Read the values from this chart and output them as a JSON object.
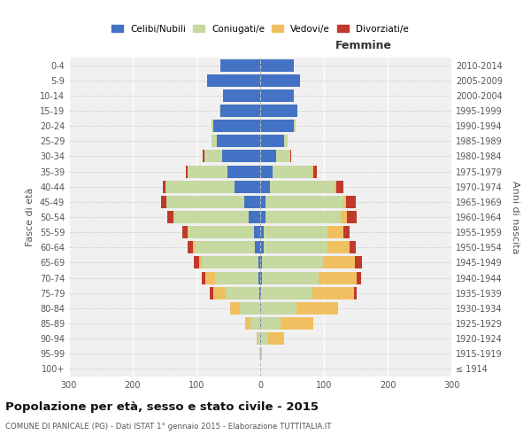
{
  "age_groups": [
    "100+",
    "95-99",
    "90-94",
    "85-89",
    "80-84",
    "75-79",
    "70-74",
    "65-69",
    "60-64",
    "55-59",
    "50-54",
    "45-49",
    "40-44",
    "35-39",
    "30-34",
    "25-29",
    "20-24",
    "15-19",
    "10-14",
    "5-9",
    "0-4"
  ],
  "birth_years": [
    "≤ 1914",
    "1915-1919",
    "1920-1924",
    "1925-1929",
    "1930-1934",
    "1935-1939",
    "1940-1944",
    "1945-1949",
    "1950-1954",
    "1955-1959",
    "1960-1964",
    "1965-1969",
    "1970-1974",
    "1975-1979",
    "1980-1984",
    "1985-1989",
    "1990-1994",
    "1995-1999",
    "2000-2004",
    "2005-2009",
    "2010-2014"
  ],
  "male_celibe": [
    0,
    0,
    0,
    0,
    0,
    2,
    3,
    3,
    8,
    10,
    18,
    25,
    40,
    52,
    60,
    68,
    73,
    63,
    58,
    83,
    63
  ],
  "male_coniugato": [
    0,
    1,
    4,
    15,
    32,
    52,
    68,
    88,
    95,
    102,
    118,
    122,
    108,
    62,
    28,
    8,
    3,
    1,
    0,
    0,
    0
  ],
  "male_vedovo": [
    0,
    0,
    2,
    8,
    15,
    20,
    15,
    5,
    3,
    2,
    0,
    0,
    0,
    0,
    0,
    0,
    0,
    0,
    0,
    0,
    0
  ],
  "male_divorziato": [
    0,
    0,
    0,
    0,
    0,
    5,
    5,
    8,
    8,
    8,
    10,
    8,
    5,
    3,
    2,
    1,
    0,
    0,
    0,
    0,
    0
  ],
  "fem_nubile": [
    0,
    0,
    2,
    2,
    2,
    2,
    3,
    3,
    5,
    5,
    8,
    8,
    15,
    20,
    25,
    38,
    53,
    58,
    53,
    63,
    53
  ],
  "fem_coniugata": [
    0,
    1,
    10,
    30,
    55,
    80,
    88,
    95,
    100,
    100,
    118,
    122,
    102,
    62,
    22,
    5,
    3,
    0,
    0,
    0,
    0
  ],
  "fem_vedova": [
    0,
    2,
    25,
    52,
    65,
    65,
    60,
    50,
    35,
    25,
    10,
    5,
    3,
    2,
    0,
    0,
    0,
    0,
    0,
    0,
    0
  ],
  "fem_divorziata": [
    0,
    0,
    0,
    0,
    0,
    5,
    8,
    12,
    10,
    10,
    15,
    15,
    10,
    5,
    2,
    0,
    0,
    0,
    0,
    0,
    0
  ],
  "colors": {
    "celibe": "#4472C4",
    "coniugato": "#c5d9a0",
    "vedovo": "#f0c060",
    "divorziato": "#c0392b"
  },
  "xlim": 300,
  "title": "Popolazione per età, sesso e stato civile - 2015",
  "subtitle": "COMUNE DI PANICALE (PG) - Dati ISTAT 1° gennaio 2015 - Elaborazione TUTTITALIA.IT",
  "ylabel_left": "Fasce di età",
  "ylabel_right": "Anni di nascita",
  "xlabel_right": "Femmine",
  "legend_labels": [
    "Celibi/Nubili",
    "Coniugati/e",
    "Vedovi/e",
    "Divorziati/e"
  ],
  "bg_color": "#f0f0f0"
}
